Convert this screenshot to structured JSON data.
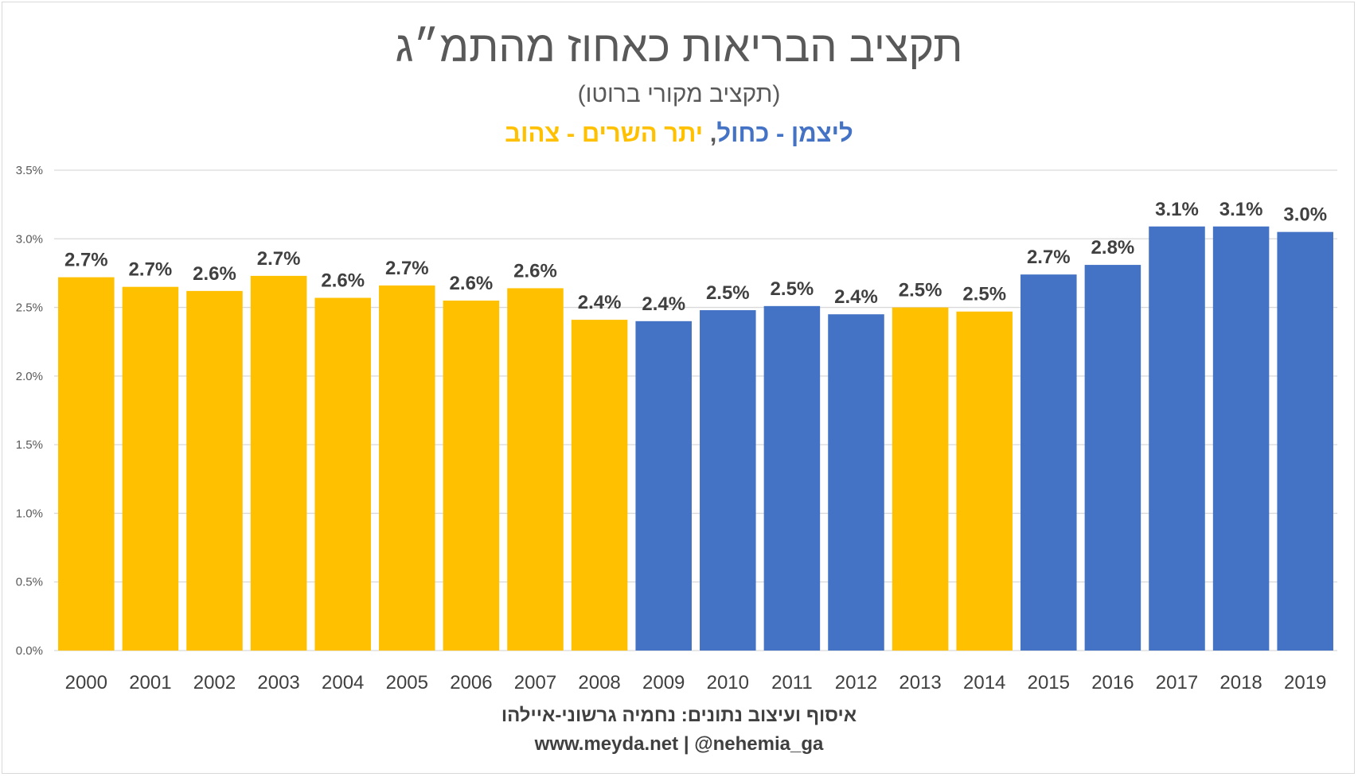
{
  "chart_data": {
    "type": "bar",
    "title": "תקציב הבריאות כאחוז מהתמ״ג",
    "subtitle": "(תקציב מקורי ברוטו)",
    "legend": {
      "blue_label": "ליצמן - כחול",
      "separator": ", ",
      "yellow_label": "יתר השרים - צהוב",
      "blue_color": "#4472C4",
      "yellow_color": "#FFC000"
    },
    "categories": [
      "2000",
      "2001",
      "2002",
      "2003",
      "2004",
      "2005",
      "2006",
      "2007",
      "2008",
      "2009",
      "2010",
      "2011",
      "2012",
      "2013",
      "2014",
      "2015",
      "2016",
      "2017",
      "2018",
      "2019"
    ],
    "values": [
      2.72,
      2.65,
      2.62,
      2.73,
      2.57,
      2.66,
      2.55,
      2.64,
      2.41,
      2.4,
      2.48,
      2.51,
      2.45,
      2.5,
      2.47,
      2.74,
      2.81,
      3.09,
      3.09,
      3.05
    ],
    "data_labels": [
      "2.7%",
      "2.7%",
      "2.6%",
      "2.7%",
      "2.6%",
      "2.7%",
      "2.6%",
      "2.6%",
      "2.4%",
      "2.4%",
      "2.5%",
      "2.5%",
      "2.4%",
      "2.5%",
      "2.5%",
      "2.7%",
      "2.8%",
      "3.1%",
      "3.1%",
      "3.0%"
    ],
    "colors": [
      "#FFC000",
      "#FFC000",
      "#FFC000",
      "#FFC000",
      "#FFC000",
      "#FFC000",
      "#FFC000",
      "#FFC000",
      "#FFC000",
      "#4472C4",
      "#4472C4",
      "#4472C4",
      "#4472C4",
      "#FFC000",
      "#FFC000",
      "#4472C4",
      "#4472C4",
      "#4472C4",
      "#4472C4",
      "#4472C4"
    ],
    "yticks": [
      0,
      0.5,
      1.0,
      1.5,
      2.0,
      2.5,
      3.0,
      3.5
    ],
    "ytick_labels": [
      "0.0%",
      "0.5%",
      "1.0%",
      "1.5%",
      "2.0%",
      "2.5%",
      "3.0%",
      "3.5%"
    ],
    "ylim": [
      0,
      3.5
    ],
    "xlabel": "",
    "ylabel": "",
    "grid": true,
    "gridline_color": "#d9d9d9",
    "label_color": "#404040"
  },
  "credits": {
    "line1": "איסוף ועיצוב נתונים: נחמיה גרשוני-איילהו",
    "line2": "www.meyda.net | @nehemia_ga"
  }
}
